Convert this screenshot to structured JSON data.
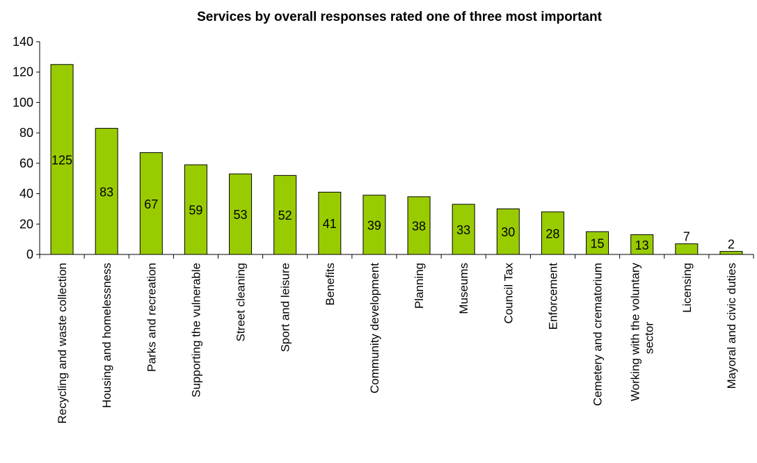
{
  "chart_data": {
    "type": "bar",
    "title": "Services by overall responses rated one of three most important",
    "xlabel": "",
    "ylabel": "",
    "ylim": [
      0,
      140
    ],
    "yticks": [
      0,
      20,
      40,
      60,
      80,
      100,
      120,
      140
    ],
    "grid": false,
    "legend": "none",
    "bar_color": "#99cc00",
    "categories": [
      "Recycling and waste collection",
      "Housing and homelessness",
      "Parks and recreation",
      "Supporting the vulnerable",
      "Street cleaning",
      "Sport and leisure",
      "Benefits",
      "Community development",
      "Planning",
      "Museums",
      "Council Tax",
      "Enforcement",
      "Cemetery and crematorium",
      "Working with the voluntary sector",
      "Licensing",
      "Mayoral and civic duties"
    ],
    "values": [
      125,
      83,
      67,
      59,
      53,
      52,
      41,
      39,
      38,
      33,
      30,
      28,
      15,
      13,
      7,
      2
    ]
  }
}
